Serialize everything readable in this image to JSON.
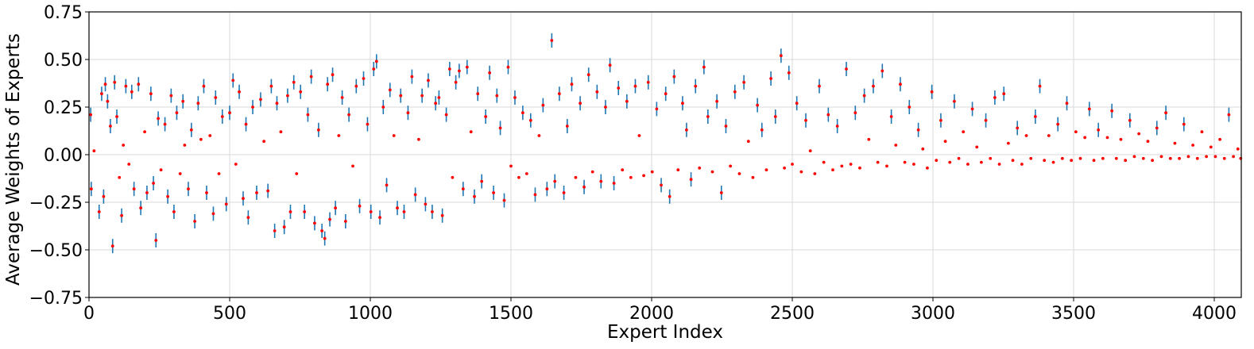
{
  "chart_data": {
    "type": "scatter",
    "title": "",
    "xlabel": "Expert Index",
    "ylabel": "Average Weights of Experts",
    "xlim": [
      0,
      4096
    ],
    "ylim": [
      -0.75,
      0.75
    ],
    "xticks": [
      0,
      500,
      1000,
      1500,
      2000,
      2500,
      3000,
      3500,
      4000
    ],
    "xtick_labels": [
      "0",
      "500",
      "1000",
      "1500",
      "2000",
      "2500",
      "3000",
      "3500",
      "4000"
    ],
    "yticks": [
      -0.75,
      -0.5,
      -0.25,
      0.0,
      0.25,
      0.5,
      0.75
    ],
    "ytick_labels": [
      "−0.75",
      "−0.50",
      "−0.25",
      "0.00",
      "0.25",
      "0.50",
      "0.75"
    ],
    "grid": true,
    "legend": "none",
    "marker_color": "#ff0000",
    "errorbar_color": "#1f77b4",
    "series": [
      {
        "points": [
          [
            6,
            0.21
          ],
          [
            8,
            -0.18
          ],
          [
            18,
            0.02
          ],
          [
            36,
            -0.3
          ],
          [
            45,
            0.32
          ],
          [
            52,
            -0.22
          ],
          [
            58,
            0.37
          ],
          [
            66,
            0.28
          ],
          [
            76,
            0.15
          ],
          [
            84,
            -0.48
          ],
          [
            91,
            0.38
          ],
          [
            99,
            0.2
          ],
          [
            108,
            -0.12
          ],
          [
            116,
            -0.32
          ],
          [
            122,
            0.05
          ],
          [
            131,
            0.36
          ],
          [
            142,
            -0.05
          ],
          [
            152,
            0.33
          ],
          [
            160,
            -0.18
          ],
          [
            176,
            0.37
          ],
          [
            184,
            -0.28
          ],
          [
            198,
            0.12
          ],
          [
            206,
            -0.2
          ],
          [
            220,
            0.32
          ],
          [
            229,
            -0.15
          ],
          [
            238,
            -0.45
          ],
          [
            246,
            0.19
          ],
          [
            256,
            -0.08
          ],
          [
            270,
            0.16
          ],
          [
            280,
            -0.22
          ],
          [
            292,
            0.31
          ],
          [
            302,
            -0.3
          ],
          [
            312,
            0.22
          ],
          [
            324,
            -0.1
          ],
          [
            334,
            0.28
          ],
          [
            340,
            0.05
          ],
          [
            353,
            -0.18
          ],
          [
            364,
            0.13
          ],
          [
            376,
            -0.35
          ],
          [
            388,
            0.27
          ],
          [
            398,
            0.08
          ],
          [
            408,
            0.36
          ],
          [
            418,
            -0.2
          ],
          [
            430,
            0.1
          ],
          [
            442,
            -0.31
          ],
          [
            450,
            0.3
          ],
          [
            462,
            -0.1
          ],
          [
            474,
            0.2
          ],
          [
            488,
            -0.26
          ],
          [
            500,
            0.22
          ],
          [
            512,
            0.39
          ],
          [
            522,
            -0.05
          ],
          [
            534,
            0.33
          ],
          [
            548,
            -0.23
          ],
          [
            558,
            0.16
          ],
          [
            566,
            -0.33
          ],
          [
            582,
            0.25
          ],
          [
            596,
            -0.2
          ],
          [
            610,
            0.29
          ],
          [
            622,
            0.07
          ],
          [
            636,
            -0.19
          ],
          [
            648,
            0.36
          ],
          [
            660,
            -0.4
          ],
          [
            668,
            0.27
          ],
          [
            682,
            0.12
          ],
          [
            694,
            -0.38
          ],
          [
            706,
            0.31
          ],
          [
            716,
            -0.3
          ],
          [
            728,
            0.38
          ],
          [
            738,
            -0.1
          ],
          [
            752,
            0.33
          ],
          [
            766,
            -0.3
          ],
          [
            778,
            0.21
          ],
          [
            790,
            0.41
          ],
          [
            802,
            -0.36
          ],
          [
            816,
            0.13
          ],
          [
            828,
            -0.4
          ],
          [
            838,
            -0.44
          ],
          [
            848,
            0.37
          ],
          [
            856,
            -0.34
          ],
          [
            866,
            0.42
          ],
          [
            876,
            -0.28
          ],
          [
            888,
            0.1
          ],
          [
            900,
            0.3
          ],
          [
            912,
            -0.35
          ],
          [
            924,
            0.21
          ],
          [
            938,
            -0.06
          ],
          [
            950,
            0.36
          ],
          [
            962,
            -0.27
          ],
          [
            976,
            0.4
          ],
          [
            990,
            0.16
          ],
          [
            1002,
            -0.3
          ],
          [
            1012,
            0.45
          ],
          [
            1022,
            0.49
          ],
          [
            1034,
            -0.33
          ],
          [
            1046,
            0.25
          ],
          [
            1058,
            -0.16
          ],
          [
            1070,
            0.34
          ],
          [
            1084,
            0.1
          ],
          [
            1096,
            -0.28
          ],
          [
            1108,
            0.31
          ],
          [
            1120,
            -0.3
          ],
          [
            1134,
            0.22
          ],
          [
            1148,
            0.41
          ],
          [
            1160,
            -0.21
          ],
          [
            1172,
            0.08
          ],
          [
            1184,
            0.31
          ],
          [
            1196,
            -0.26
          ],
          [
            1206,
            0.39
          ],
          [
            1220,
            -0.3
          ],
          [
            1232,
            0.27
          ],
          [
            1244,
            0.3
          ],
          [
            1256,
            -0.32
          ],
          [
            1270,
            0.21
          ],
          [
            1282,
            0.45
          ],
          [
            1292,
            -0.12
          ],
          [
            1304,
            0.38
          ],
          [
            1316,
            0.44
          ],
          [
            1330,
            -0.18
          ],
          [
            1344,
            0.46
          ],
          [
            1358,
            0.12
          ],
          [
            1370,
            -0.22
          ],
          [
            1382,
            0.32
          ],
          [
            1396,
            -0.14
          ],
          [
            1410,
            0.2
          ],
          [
            1424,
            0.43
          ],
          [
            1438,
            -0.2
          ],
          [
            1450,
            0.31
          ],
          [
            1462,
            0.14
          ],
          [
            1476,
            -0.24
          ],
          [
            1490,
            0.46
          ],
          [
            1500,
            -0.06
          ],
          [
            1514,
            0.3
          ],
          [
            1528,
            -0.12
          ],
          [
            1542,
            0.22
          ],
          [
            1556,
            -0.1
          ],
          [
            1570,
            0.18
          ],
          [
            1586,
            -0.21
          ],
          [
            1600,
            0.1
          ],
          [
            1614,
            0.26
          ],
          [
            1628,
            -0.18
          ],
          [
            1645,
            0.6
          ],
          [
            1656,
            -0.14
          ],
          [
            1672,
            0.32
          ],
          [
            1688,
            -0.2
          ],
          [
            1700,
            0.15
          ],
          [
            1716,
            0.37
          ],
          [
            1730,
            -0.12
          ],
          [
            1746,
            0.27
          ],
          [
            1760,
            -0.17
          ],
          [
            1776,
            0.42
          ],
          [
            1790,
            -0.09
          ],
          [
            1806,
            0.33
          ],
          [
            1820,
            -0.14
          ],
          [
            1836,
            0.25
          ],
          [
            1852,
            0.47
          ],
          [
            1866,
            -0.15
          ],
          [
            1882,
            0.35
          ],
          [
            1896,
            -0.08
          ],
          [
            1912,
            0.28
          ],
          [
            1926,
            -0.12
          ],
          [
            1942,
            0.36
          ],
          [
            1956,
            0.1
          ],
          [
            1972,
            -0.11
          ],
          [
            1988,
            0.38
          ],
          [
            2002,
            -0.09
          ],
          [
            2018,
            0.24
          ],
          [
            2034,
            -0.16
          ],
          [
            2050,
            0.32
          ],
          [
            2064,
            -0.22
          ],
          [
            2080,
            0.41
          ],
          [
            2094,
            -0.08
          ],
          [
            2110,
            0.27
          ],
          [
            2124,
            0.13
          ],
          [
            2140,
            -0.13
          ],
          [
            2156,
            0.36
          ],
          [
            2170,
            -0.07
          ],
          [
            2186,
            0.46
          ],
          [
            2200,
            0.2
          ],
          [
            2216,
            -0.09
          ],
          [
            2232,
            0.28
          ],
          [
            2248,
            -0.2
          ],
          [
            2264,
            0.15
          ],
          [
            2280,
            -0.06
          ],
          [
            2296,
            0.33
          ],
          [
            2312,
            -0.1
          ],
          [
            2328,
            0.38
          ],
          [
            2344,
            0.07
          ],
          [
            2360,
            -0.12
          ],
          [
            2376,
            0.26
          ],
          [
            2392,
            0.13
          ],
          [
            2408,
            -0.08
          ],
          [
            2424,
            0.4
          ],
          [
            2440,
            0.2
          ],
          [
            2460,
            0.52
          ],
          [
            2472,
            -0.07
          ],
          [
            2488,
            0.43
          ],
          [
            2500,
            -0.05
          ],
          [
            2516,
            0.27
          ],
          [
            2532,
            -0.09
          ],
          [
            2548,
            0.18
          ],
          [
            2564,
            0.02
          ],
          [
            2580,
            -0.1
          ],
          [
            2596,
            0.36
          ],
          [
            2612,
            -0.04
          ],
          [
            2628,
            0.21
          ],
          [
            2644,
            -0.08
          ],
          [
            2660,
            0.15
          ],
          [
            2676,
            -0.06
          ],
          [
            2692,
            0.45
          ],
          [
            2708,
            -0.05
          ],
          [
            2724,
            0.22
          ],
          [
            2740,
            -0.07
          ],
          [
            2756,
            0.31
          ],
          [
            2772,
            0.08
          ],
          [
            2788,
            0.36
          ],
          [
            2804,
            -0.04
          ],
          [
            2820,
            0.44
          ],
          [
            2836,
            -0.06
          ],
          [
            2852,
            0.2
          ],
          [
            2868,
            0.05
          ],
          [
            2884,
            0.37
          ],
          [
            2900,
            -0.04
          ],
          [
            2916,
            0.25
          ],
          [
            2932,
            -0.05
          ],
          [
            2948,
            0.13
          ],
          [
            2964,
            0.03
          ],
          [
            2980,
            -0.07
          ],
          [
            2996,
            0.33
          ],
          [
            3012,
            -0.03
          ],
          [
            3028,
            0.18
          ],
          [
            3044,
            0.07
          ],
          [
            3060,
            -0.04
          ],
          [
            3076,
            0.28
          ],
          [
            3092,
            -0.02
          ],
          [
            3108,
            0.12
          ],
          [
            3124,
            -0.05
          ],
          [
            3140,
            0.24
          ],
          [
            3156,
            0.04
          ],
          [
            3172,
            -0.04
          ],
          [
            3188,
            0.18
          ],
          [
            3204,
            -0.02
          ],
          [
            3220,
            0.3
          ],
          [
            3236,
            -0.05
          ],
          [
            3252,
            0.32
          ],
          [
            3268,
            0.06
          ],
          [
            3284,
            -0.03
          ],
          [
            3300,
            0.14
          ],
          [
            3316,
            -0.05
          ],
          [
            3332,
            0.1
          ],
          [
            3348,
            -0.02
          ],
          [
            3364,
            0.2
          ],
          [
            3380,
            0.36
          ],
          [
            3396,
            -0.03
          ],
          [
            3412,
            0.1
          ],
          [
            3428,
            -0.04
          ],
          [
            3444,
            0.16
          ],
          [
            3460,
            -0.02
          ],
          [
            3476,
            0.27
          ],
          [
            3492,
            -0.03
          ],
          [
            3508,
            0.12
          ],
          [
            3524,
            -0.02
          ],
          [
            3540,
            0.09
          ],
          [
            3556,
            0.24
          ],
          [
            3572,
            -0.03
          ],
          [
            3588,
            0.13
          ],
          [
            3604,
            -0.02
          ],
          [
            3620,
            0.09
          ],
          [
            3636,
            0.23
          ],
          [
            3652,
            -0.02
          ],
          [
            3668,
            0.08
          ],
          [
            3684,
            -0.03
          ],
          [
            3700,
            0.18
          ],
          [
            3716,
            -0.01
          ],
          [
            3732,
            0.11
          ],
          [
            3748,
            -0.02
          ],
          [
            3764,
            0.07
          ],
          [
            3780,
            -0.03
          ],
          [
            3796,
            0.14
          ],
          [
            3812,
            -0.01
          ],
          [
            3828,
            0.22
          ],
          [
            3844,
            -0.02
          ],
          [
            3860,
            0.06
          ],
          [
            3876,
            -0.02
          ],
          [
            3892,
            0.16
          ],
          [
            3908,
            -0.01
          ],
          [
            3924,
            0.05
          ],
          [
            3940,
            -0.02
          ],
          [
            3956,
            0.12
          ],
          [
            3972,
            -0.01
          ],
          [
            3988,
            0.04
          ],
          [
            4004,
            -0.01
          ],
          [
            4020,
            0.08
          ],
          [
            4036,
            -0.02
          ],
          [
            4052,
            0.21
          ],
          [
            4068,
            -0.01
          ],
          [
            4084,
            0.03
          ],
          [
            4094,
            -0.02
          ]
        ]
      }
    ]
  }
}
